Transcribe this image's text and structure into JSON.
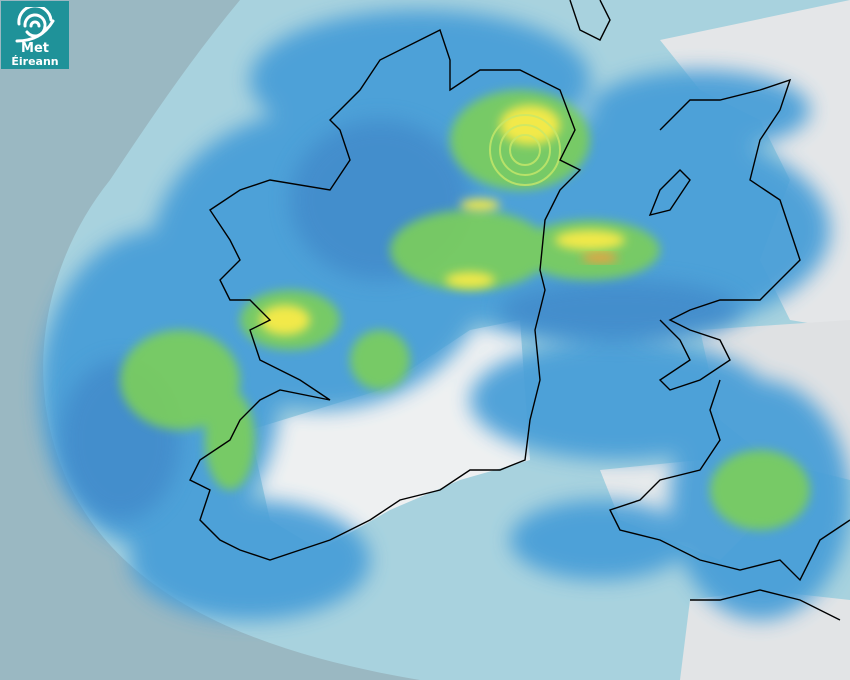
{
  "logo": {
    "line1": "Met",
    "line2": "Éireann",
    "icon": "swirl-logo-icon"
  },
  "map": {
    "type": "weather-radar",
    "colors": {
      "outside_coverage": "#9ab8c2",
      "radar_coverage": "#a8d2de",
      "land": "#eef0f1",
      "light_rain": "#4a9fd8",
      "moderate_rain": "#3f86c8",
      "heavy_rain": "#7ccf5a",
      "very_heavy_rain": "#f2e94a",
      "intense": "#f0a040",
      "coastline": "#000000",
      "logo_bg": "#1f9299"
    }
  }
}
